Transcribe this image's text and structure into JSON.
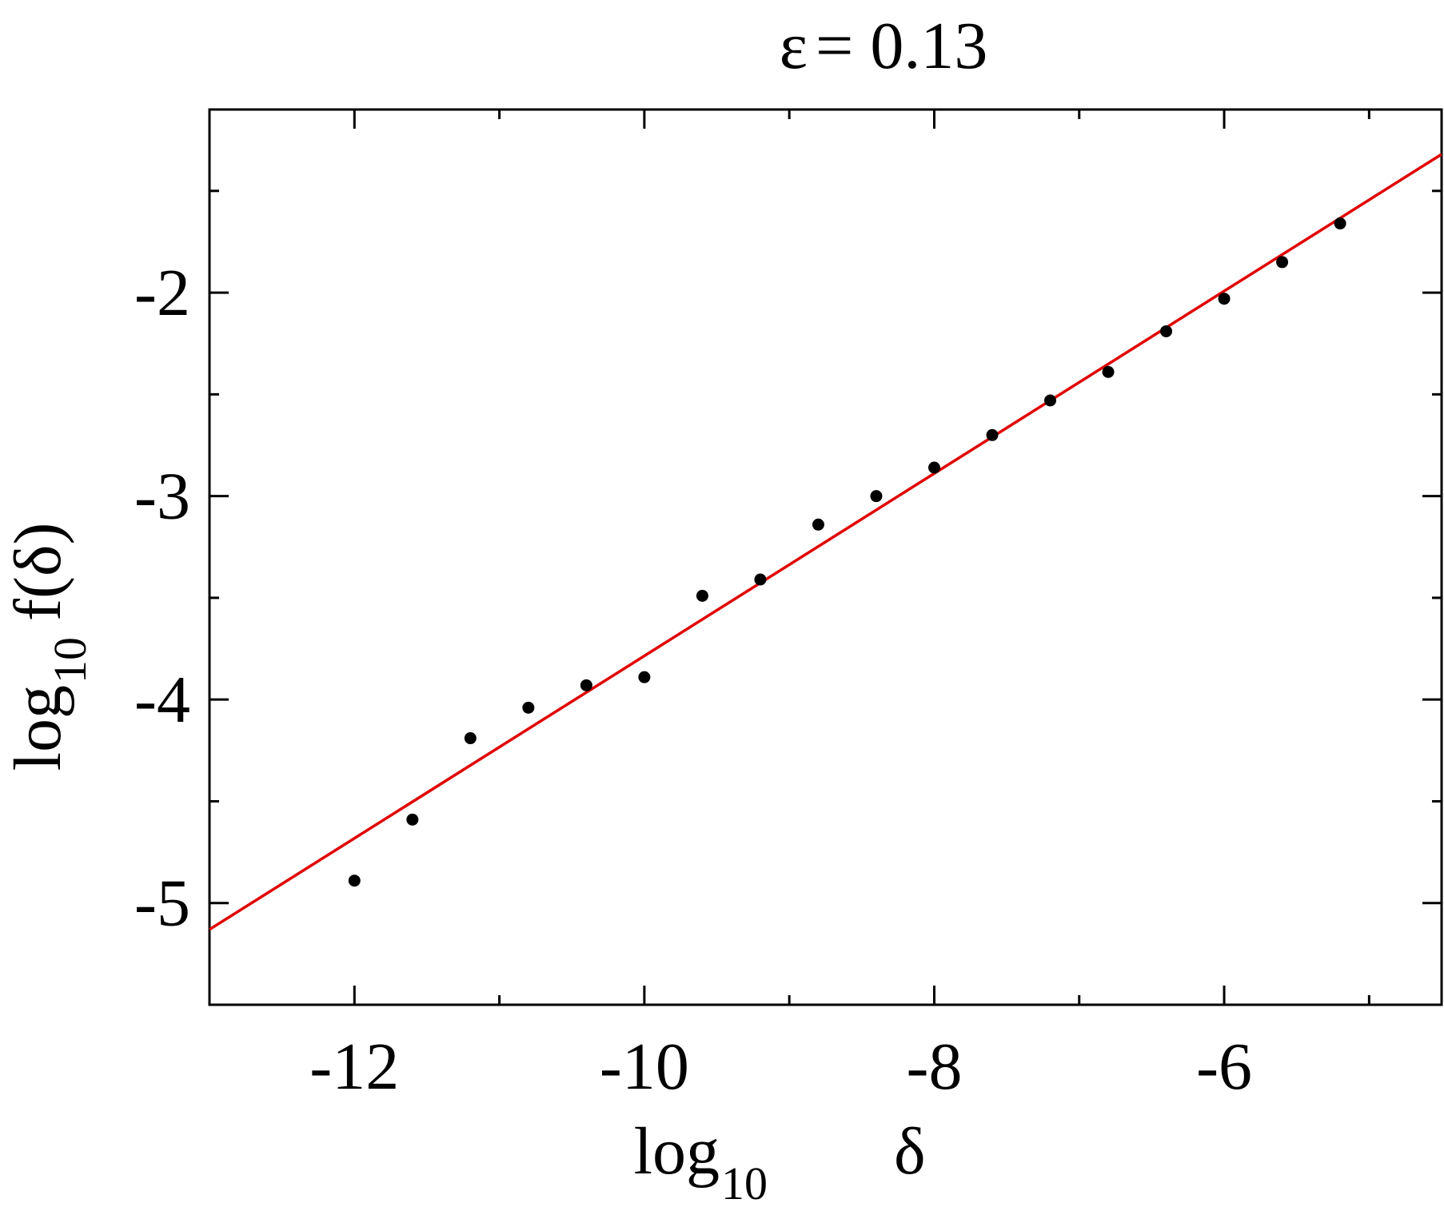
{
  "chart_data": {
    "type": "scatter",
    "title_symbol": "ε",
    "title_value": "= 0.13",
    "xlabel_base": "log",
    "xlabel_sub": "10",
    "xlabel_var": "δ",
    "ylabel_base": "log",
    "ylabel_sub": "10",
    "ylabel_var": "f(δ)",
    "xlim": [
      -13,
      -4.5
    ],
    "ylim": [
      -5.5,
      -1.1
    ],
    "x_ticks_major": [
      -12,
      -10,
      -8,
      -6
    ],
    "x_tick_labels": [
      "-12",
      "-10",
      "-8",
      "-6"
    ],
    "x_ticks_minor": [
      -11,
      -9,
      -7,
      -5
    ],
    "y_ticks_major": [
      -5,
      -4,
      -3,
      -2
    ],
    "y_tick_labels": [
      "-5",
      "-4",
      "-3",
      "-2"
    ],
    "y_ticks_minor": [
      -4.5,
      -3.5,
      -2.5,
      -1.5
    ],
    "grid": false,
    "series": [
      {
        "kind": "points",
        "color": "#000000",
        "x": [
          -12.0,
          -11.6,
          -11.2,
          -10.8,
          -10.4,
          -10.0,
          -9.6,
          -9.2,
          -8.8,
          -8.4,
          -8.0,
          -7.6,
          -7.2,
          -6.8,
          -6.4,
          -6.0,
          -5.6,
          -5.2
        ],
        "y": [
          -4.89,
          -4.59,
          -4.19,
          -4.04,
          -3.93,
          -3.89,
          -3.49,
          -3.41,
          -3.14,
          -3.0,
          -2.86,
          -2.7,
          -2.53,
          -2.39,
          -2.19,
          -2.03,
          -1.85,
          -1.66
        ]
      },
      {
        "kind": "fit-line",
        "color": "#e00000",
        "x": [
          -13.0,
          -4.5
        ],
        "y": [
          -5.13,
          -1.32
        ]
      }
    ]
  }
}
